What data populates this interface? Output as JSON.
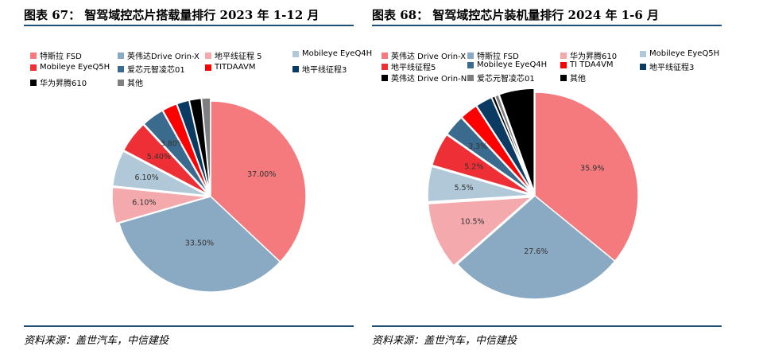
{
  "left": {
    "title": "图表 67：  智驾域控芯片搭载量排行 2023 年 1-12 月",
    "source": "资料来源：盖世汽车，中信建投",
    "legend": [
      {
        "label": "特斯拉 FSD",
        "color": "#f47a7d"
      },
      {
        "label": "英伟达Drive Orin-X",
        "color": "#8aa9c2"
      },
      {
        "label": "地平线征程 5",
        "color": "#f4aaad"
      },
      {
        "label": "Mobileye EyeQ4H",
        "color": "#b0c8d8"
      },
      {
        "label": "Mobileye EyeQ5H",
        "color": "#ee2f35"
      },
      {
        "label": "爱芯元智凌芯01",
        "color": "#3a6a8d"
      },
      {
        "label": "TITDAAVM",
        "color": "#ff0000"
      },
      {
        "label": "地平线征程3",
        "color": "#0b3b63"
      },
      {
        "label": "华为昇腾610",
        "color": "#000000"
      },
      {
        "label": "其他",
        "color": "#7f7f7f"
      }
    ]
  },
  "right": {
    "title": "图表 68：  智驾域控芯片装机量排行 2024 年 1-6 月",
    "source": "资料来源：盖世汽车，中信建投",
    "legend": [
      {
        "label": "英伟达 Drive Orin-X",
        "color": "#f47a7d"
      },
      {
        "label": "特斯拉 FSD",
        "color": "#8aa9c2"
      },
      {
        "label": "华为昇腾610",
        "color": "#f4aaad"
      },
      {
        "label": "Mobileye EyeQ5H",
        "color": "#b0c8d8"
      },
      {
        "label": "地平线征程5",
        "color": "#ee2f35"
      },
      {
        "label": "Mobileye EyeQ4H",
        "color": "#3a6a8d"
      },
      {
        "label": "TI TDA4VM",
        "color": "#ff0000"
      },
      {
        "label": "地平线征程3",
        "color": "#0b3b63"
      },
      {
        "label": "英伟达 Drive Orin-N",
        "color": "#000000"
      },
      {
        "label": "爱芯元智凌芯01",
        "color": "#7f7f7f"
      },
      {
        "label": "其他",
        "color": "#000000"
      }
    ]
  },
  "chart_data": [
    {
      "type": "pie",
      "title": "智驾域控芯片搭载量排行 2023 年 1-12 月",
      "categories": [
        "特斯拉 FSD",
        "英伟达Drive Orin-X",
        "地平线征程 5",
        "Mobileye EyeQ4H",
        "Mobileye EyeQ5H",
        "爱芯元智凌芯01",
        "TITDAAVM",
        "地平线征程3",
        "华为昇腾610",
        "其他"
      ],
      "values": [
        37.0,
        33.5,
        6.1,
        6.1,
        5.4,
        3.8,
        2.5,
        2.1,
        2.0,
        1.5
      ],
      "labels": [
        "37.00%",
        "33.50%",
        "6.10%",
        "6.10%",
        "5.40%",
        "3.80%",
        "",
        "",
        "",
        ""
      ],
      "colors": [
        "#f47a7d",
        "#8aa9c2",
        "#f4aaad",
        "#b0c8d8",
        "#ee2f35",
        "#3a6a8d",
        "#ff0000",
        "#0b3b63",
        "#000000",
        "#7f7f7f"
      ],
      "legend_position": "top"
    },
    {
      "type": "pie",
      "title": "智驾域控芯片装机量排行 2024 年 1-6 月",
      "categories": [
        "英伟达 Drive Orin-X",
        "特斯拉 FSD",
        "华为昇腾610",
        "Mobileye EyeQ5H",
        "地平线征程5",
        "Mobileye EyeQ4H",
        "TI TDA4VM",
        "地平线征程3",
        "英伟达 Drive Orin-N",
        "爱芯元智凌芯01",
        "其他"
      ],
      "values": [
        35.9,
        27.6,
        10.5,
        5.5,
        5.2,
        3.3,
        2.8,
        2.6,
        0.5,
        0.6,
        5.5
      ],
      "labels": [
        "35.9%",
        "27.6%",
        "10.5%",
        "5.5%",
        "5.2%",
        "3.3%",
        "",
        "",
        "",
        "",
        ""
      ],
      "colors": [
        "#f47a7d",
        "#8aa9c2",
        "#f4aaad",
        "#b0c8d8",
        "#ee2f35",
        "#3a6a8d",
        "#ff0000",
        "#0b3b63",
        "#000000",
        "#7f7f7f",
        "#000000"
      ],
      "legend_position": "top"
    }
  ]
}
